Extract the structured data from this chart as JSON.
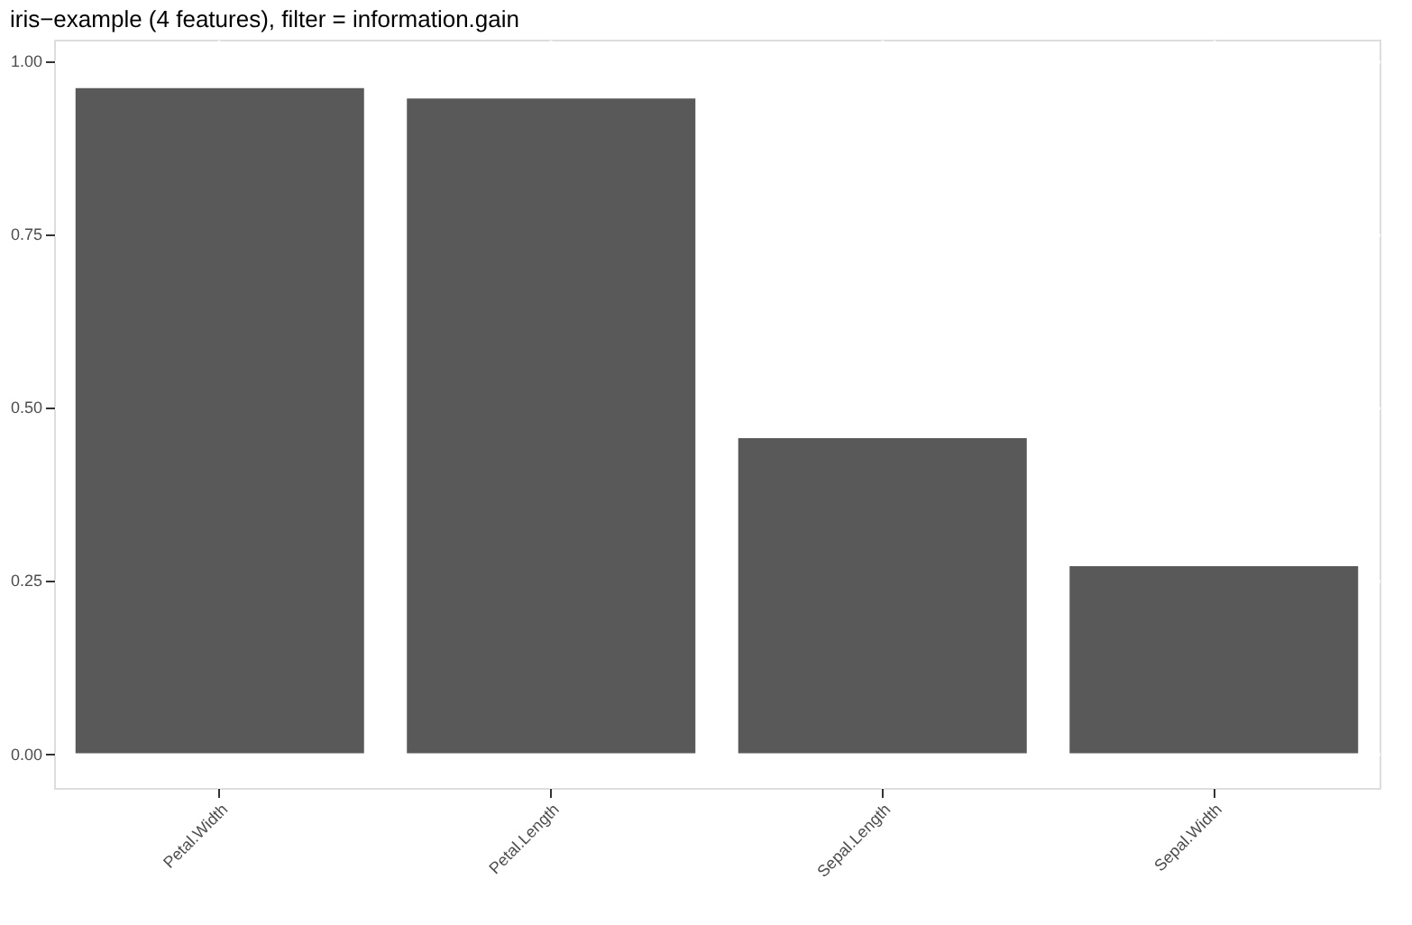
{
  "chart_data": {
    "type": "bar",
    "title": "iris−example (4 features), filter = information.gain",
    "categories": [
      "Petal.Width",
      "Petal.Length",
      "Sepal.Length",
      "Sepal.Width"
    ],
    "values": [
      0.96,
      0.945,
      0.455,
      0.27
    ],
    "color": "#595959",
    "ylim": [
      -0.05,
      1.03
    ],
    "yticks": [
      {
        "value": 0,
        "label": "0.00"
      },
      {
        "value": 0.25,
        "label": "0.25"
      },
      {
        "value": 0.5,
        "label": "0.50"
      },
      {
        "value": 0.75,
        "label": "0.75"
      },
      {
        "value": 1,
        "label": "1.00"
      }
    ],
    "grid": true
  }
}
